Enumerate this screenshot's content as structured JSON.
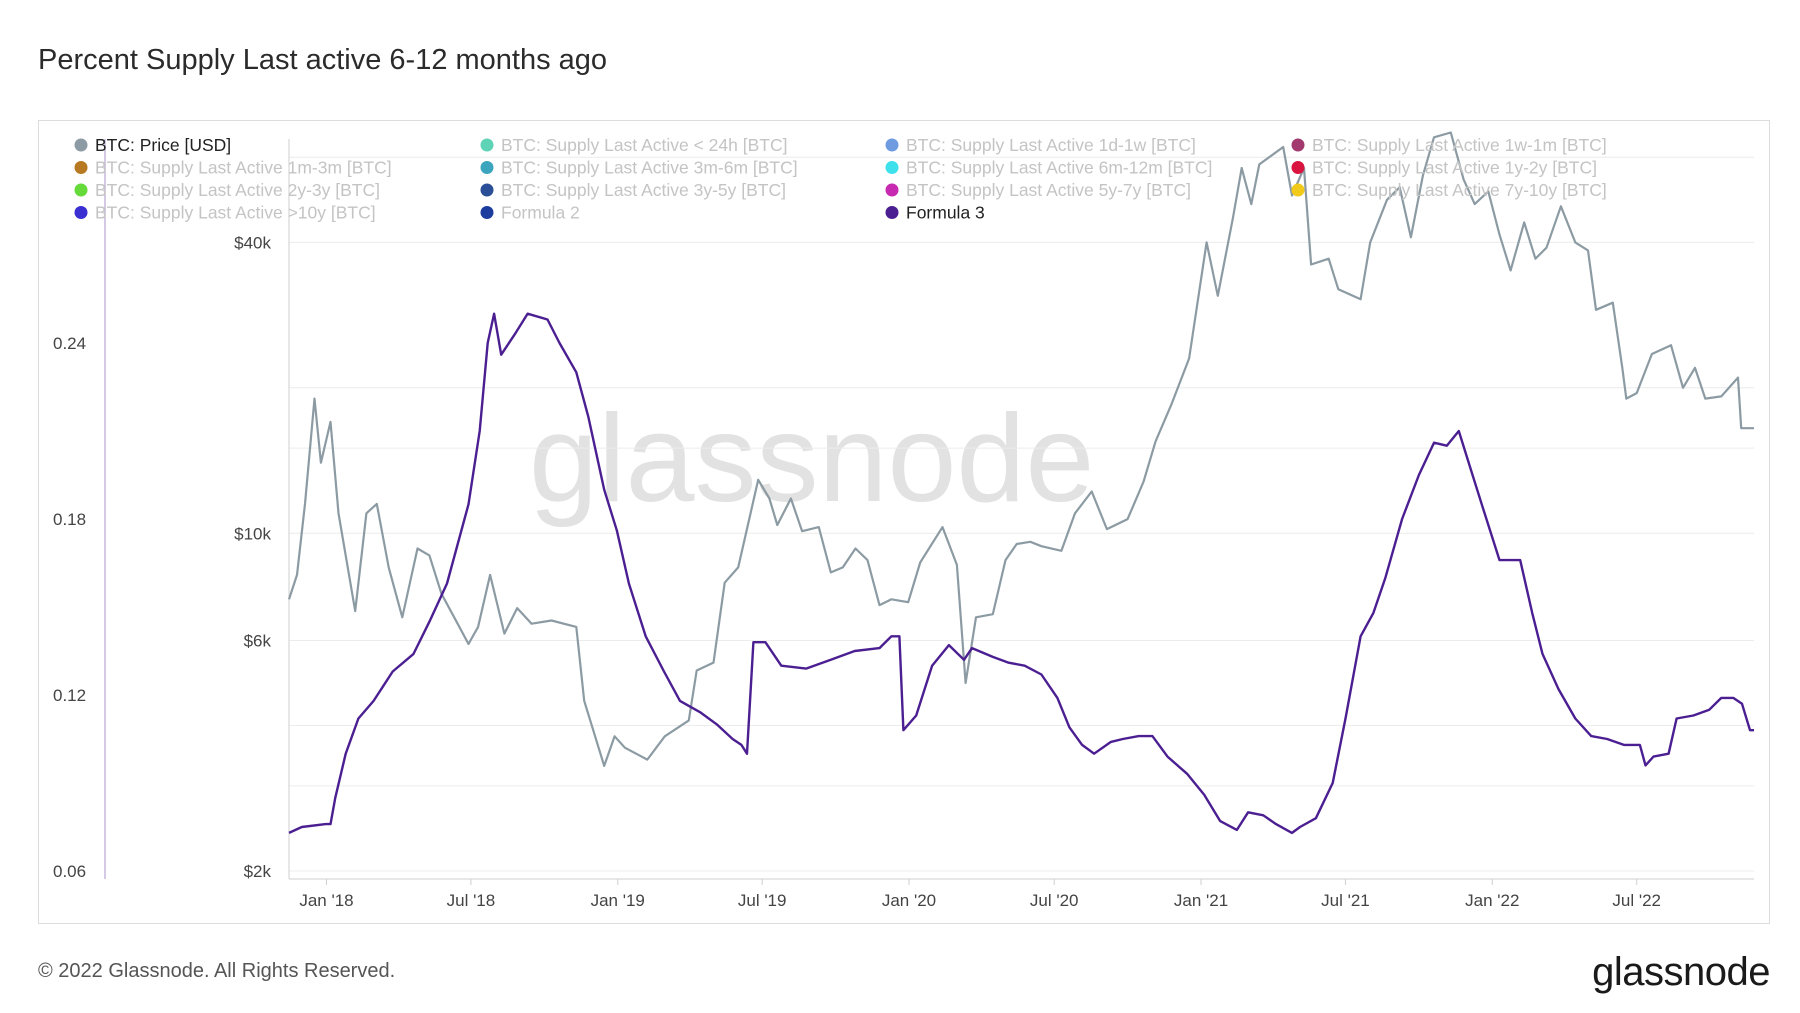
{
  "title": "Percent Supply Last active 6-12 months ago",
  "footer": {
    "copyright": "© 2022 Glassnode. All Rights Reserved.",
    "logo_text": "glassnode"
  },
  "watermark": "glassnode",
  "colors": {
    "price": "#8c9ba3",
    "formula3": "#4b1f91",
    "grid": "#ececec",
    "axis": "#cfcfcf"
  },
  "legend": [
    {
      "label": "BTC: Price [USD]",
      "color": "#8c9ba3",
      "active": true
    },
    {
      "label": "BTC: Supply Last Active < 24h [BTC]",
      "color": "#5fd3b5",
      "active": false
    },
    {
      "label": "BTC: Supply Last Active 1d-1w [BTC]",
      "color": "#6f9be0",
      "active": false
    },
    {
      "label": "BTC: Supply Last Active 1w-1m [BTC]",
      "color": "#a23a6f",
      "active": false
    },
    {
      "label": "BTC: Supply Last Active 1m-3m [BTC]",
      "color": "#b77a22",
      "active": false
    },
    {
      "label": "BTC: Supply Last Active 3m-6m [BTC]",
      "color": "#3aa5bd",
      "active": false
    },
    {
      "label": "BTC: Supply Last Active 6m-12m [BTC]",
      "color": "#3ee0ec",
      "active": false
    },
    {
      "label": "BTC: Supply Last Active 1y-2y [BTC]",
      "color": "#d9153f",
      "active": false
    },
    {
      "label": "BTC: Supply Last Active 2y-3y [BTC]",
      "color": "#66d93b",
      "active": false
    },
    {
      "label": "BTC: Supply Last Active 3y-5y [BTC]",
      "color": "#2a4f96",
      "active": false
    },
    {
      "label": "BTC: Supply Last Active 5y-7y [BTC]",
      "color": "#c72ab0",
      "active": false
    },
    {
      "label": "BTC: Supply Last Active 7y-10y [BTC]",
      "color": "#f2cb1a",
      "active": false
    },
    {
      "label": "BTC: Supply Last Active >10y [BTC]",
      "color": "#3a2fd1",
      "active": false
    },
    {
      "label": "Formula 2",
      "color": "#1c3d9e",
      "active": false
    },
    {
      "label": "Formula 3",
      "color": "#4b1f91",
      "active": true
    }
  ],
  "chart_data": {
    "type": "line",
    "title": "Percent Supply Last active 6-12 months ago",
    "x_tick_labels": [
      "Jan '18",
      "Jul '18",
      "Jan '19",
      "Jul '19",
      "Jan '20",
      "Jul '20",
      "Jan '21",
      "Jul '21",
      "Jan '22",
      "Jul '22"
    ],
    "x_range": [
      "2017-11-15",
      "2022-11-25"
    ],
    "left_axis": {
      "ticks": [
        0.06,
        0.12,
        0.18,
        0.24
      ],
      "tick_labels": [
        "0.06",
        "0.12",
        "0.18",
        "0.24"
      ],
      "range": [
        0.06,
        0.24
      ]
    },
    "right_axis": {
      "scale": "log",
      "ticks": [
        2000,
        6000,
        10000,
        40000
      ],
      "tick_labels": [
        "$2k",
        "$6k",
        "$10k",
        "$40k"
      ],
      "range": [
        2000,
        68000
      ]
    },
    "grid": true,
    "legend_position": "top-left",
    "series": [
      {
        "name": "BTC: Price [USD]",
        "axis": "right",
        "points": [
          [
            "2017-11-15",
            7300
          ],
          [
            "2017-11-25",
            8200
          ],
          [
            "2017-12-05",
            11500
          ],
          [
            "2017-12-17",
            19000
          ],
          [
            "2017-12-25",
            14000
          ],
          [
            "2018-01-06",
            17000
          ],
          [
            "2018-01-16",
            11000
          ],
          [
            "2018-02-06",
            6900
          ],
          [
            "2018-02-20",
            11000
          ],
          [
            "2018-03-05",
            11500
          ],
          [
            "2018-03-20",
            8500
          ],
          [
            "2018-04-06",
            6700
          ],
          [
            "2018-04-25",
            9300
          ],
          [
            "2018-05-10",
            9000
          ],
          [
            "2018-05-25",
            7500
          ],
          [
            "2018-06-10",
            6700
          ],
          [
            "2018-06-28",
            5900
          ],
          [
            "2018-07-10",
            6400
          ],
          [
            "2018-07-25",
            8200
          ],
          [
            "2018-08-12",
            6200
          ],
          [
            "2018-08-28",
            7000
          ],
          [
            "2018-09-15",
            6500
          ],
          [
            "2018-10-10",
            6600
          ],
          [
            "2018-11-10",
            6400
          ],
          [
            "2018-11-20",
            4500
          ],
          [
            "2018-12-15",
            3300
          ],
          [
            "2018-12-28",
            3800
          ],
          [
            "2019-01-10",
            3600
          ],
          [
            "2019-02-07",
            3400
          ],
          [
            "2019-03-01",
            3800
          ],
          [
            "2019-03-31",
            4100
          ],
          [
            "2019-04-10",
            5200
          ],
          [
            "2019-05-01",
            5400
          ],
          [
            "2019-05-15",
            7900
          ],
          [
            "2019-06-01",
            8500
          ],
          [
            "2019-06-26",
            12900
          ],
          [
            "2019-07-10",
            11800
          ],
          [
            "2019-07-20",
            10400
          ],
          [
            "2019-08-06",
            11800
          ],
          [
            "2019-08-20",
            10100
          ],
          [
            "2019-09-10",
            10300
          ],
          [
            "2019-09-25",
            8300
          ],
          [
            "2019-10-10",
            8500
          ],
          [
            "2019-10-26",
            9300
          ],
          [
            "2019-11-10",
            8800
          ],
          [
            "2019-11-25",
            7100
          ],
          [
            "2019-12-10",
            7300
          ],
          [
            "2019-12-31",
            7200
          ],
          [
            "2020-01-15",
            8700
          ],
          [
            "2020-02-12",
            10300
          ],
          [
            "2020-03-01",
            8600
          ],
          [
            "2020-03-12",
            4900
          ],
          [
            "2020-03-25",
            6700
          ],
          [
            "2020-04-15",
            6800
          ],
          [
            "2020-05-01",
            8800
          ],
          [
            "2020-05-15",
            9500
          ],
          [
            "2020-06-01",
            9600
          ],
          [
            "2020-06-15",
            9400
          ],
          [
            "2020-07-10",
            9200
          ],
          [
            "2020-07-27",
            11000
          ],
          [
            "2020-08-17",
            12200
          ],
          [
            "2020-09-05",
            10200
          ],
          [
            "2020-10-01",
            10700
          ],
          [
            "2020-10-21",
            12800
          ],
          [
            "2020-11-05",
            15500
          ],
          [
            "2020-11-25",
            18500
          ],
          [
            "2020-12-17",
            23000
          ],
          [
            "2021-01-08",
            40000
          ],
          [
            "2021-01-22",
            31000
          ],
          [
            "2021-02-10",
            45000
          ],
          [
            "2021-02-21",
            57000
          ],
          [
            "2021-03-05",
            48000
          ],
          [
            "2021-03-15",
            58000
          ],
          [
            "2021-04-14",
            63000
          ],
          [
            "2021-04-25",
            50000
          ],
          [
            "2021-05-10",
            57000
          ],
          [
            "2021-05-19",
            36000
          ],
          [
            "2021-06-10",
            37000
          ],
          [
            "2021-06-22",
            32000
          ],
          [
            "2021-07-20",
            30500
          ],
          [
            "2021-08-01",
            40000
          ],
          [
            "2021-08-22",
            49000
          ],
          [
            "2021-09-07",
            52000
          ],
          [
            "2021-09-21",
            41000
          ],
          [
            "2021-10-06",
            55000
          ],
          [
            "2021-10-20",
            66000
          ],
          [
            "2021-11-10",
            67500
          ],
          [
            "2021-11-26",
            54000
          ],
          [
            "2021-12-10",
            48000
          ],
          [
            "2021-12-27",
            51000
          ],
          [
            "2022-01-10",
            41500
          ],
          [
            "2022-01-24",
            35000
          ],
          [
            "2022-02-10",
            44000
          ],
          [
            "2022-02-24",
            37000
          ],
          [
            "2022-03-10",
            39000
          ],
          [
            "2022-03-28",
            47500
          ],
          [
            "2022-04-15",
            40000
          ],
          [
            "2022-05-01",
            38500
          ],
          [
            "2022-05-11",
            29000
          ],
          [
            "2022-06-01",
            30000
          ],
          [
            "2022-06-13",
            22000
          ],
          [
            "2022-06-18",
            19000
          ],
          [
            "2022-07-01",
            19500
          ],
          [
            "2022-07-20",
            23500
          ],
          [
            "2022-08-13",
            24500
          ],
          [
            "2022-08-28",
            20000
          ],
          [
            "2022-09-12",
            22000
          ],
          [
            "2022-09-25",
            19000
          ],
          [
            "2022-10-15",
            19200
          ],
          [
            "2022-11-05",
            21000
          ],
          [
            "2022-11-09",
            16500
          ],
          [
            "2022-11-25",
            16500
          ]
        ]
      },
      {
        "name": "Formula 3",
        "axis": "left",
        "points": [
          [
            "2017-11-15",
            0.073
          ],
          [
            "2017-12-01",
            0.075
          ],
          [
            "2017-12-31",
            0.076
          ],
          [
            "2018-01-06",
            0.076
          ],
          [
            "2018-01-12",
            0.085
          ],
          [
            "2018-01-25",
            0.1
          ],
          [
            "2018-02-10",
            0.112
          ],
          [
            "2018-03-01",
            0.118
          ],
          [
            "2018-03-25",
            0.128
          ],
          [
            "2018-04-20",
            0.134
          ],
          [
            "2018-05-10",
            0.145
          ],
          [
            "2018-06-01",
            0.158
          ],
          [
            "2018-06-28",
            0.185
          ],
          [
            "2018-07-12",
            0.21
          ],
          [
            "2018-07-22",
            0.24
          ],
          [
            "2018-07-30",
            0.25
          ],
          [
            "2018-08-08",
            0.236
          ],
          [
            "2018-08-25",
            0.243
          ],
          [
            "2018-09-10",
            0.25
          ],
          [
            "2018-10-05",
            0.248
          ],
          [
            "2018-10-20",
            0.24
          ],
          [
            "2018-11-10",
            0.23
          ],
          [
            "2018-11-25",
            0.215
          ],
          [
            "2018-12-15",
            0.19
          ],
          [
            "2018-12-31",
            0.176
          ],
          [
            "2019-01-15",
            0.158
          ],
          [
            "2019-02-05",
            0.14
          ],
          [
            "2019-02-28",
            0.128
          ],
          [
            "2019-03-20",
            0.118
          ],
          [
            "2019-04-15",
            0.114
          ],
          [
            "2019-05-05",
            0.11
          ],
          [
            "2019-05-25",
            0.105
          ],
          [
            "2019-06-05",
            0.103
          ],
          [
            "2019-06-12",
            0.1
          ],
          [
            "2019-06-20",
            0.138
          ],
          [
            "2019-07-05",
            0.138
          ],
          [
            "2019-07-25",
            0.13
          ],
          [
            "2019-08-25",
            0.129
          ],
          [
            "2019-09-25",
            0.132
          ],
          [
            "2019-10-25",
            0.135
          ],
          [
            "2019-11-25",
            0.136
          ],
          [
            "2019-12-10",
            0.14
          ],
          [
            "2019-12-20",
            0.14
          ],
          [
            "2019-12-25",
            0.108
          ],
          [
            "2020-01-10",
            0.113
          ],
          [
            "2020-01-30",
            0.13
          ],
          [
            "2020-02-20",
            0.137
          ],
          [
            "2020-03-10",
            0.132
          ],
          [
            "2020-03-20",
            0.136
          ],
          [
            "2020-04-15",
            0.133
          ],
          [
            "2020-05-05",
            0.131
          ],
          [
            "2020-05-25",
            0.13
          ],
          [
            "2020-06-15",
            0.127
          ],
          [
            "2020-07-05",
            0.119
          ],
          [
            "2020-07-20",
            0.109
          ],
          [
            "2020-08-05",
            0.103
          ],
          [
            "2020-08-20",
            0.1
          ],
          [
            "2020-09-10",
            0.104
          ],
          [
            "2020-09-25",
            0.105
          ],
          [
            "2020-10-15",
            0.106
          ],
          [
            "2020-11-01",
            0.106
          ],
          [
            "2020-11-20",
            0.099
          ],
          [
            "2020-12-15",
            0.093
          ],
          [
            "2021-01-05",
            0.086
          ],
          [
            "2021-01-25",
            0.077
          ],
          [
            "2021-02-15",
            0.074
          ],
          [
            "2021-03-01",
            0.08
          ],
          [
            "2021-03-20",
            0.079
          ],
          [
            "2021-04-05",
            0.076
          ],
          [
            "2021-04-25",
            0.073
          ],
          [
            "2021-05-05",
            0.075
          ],
          [
            "2021-05-25",
            0.078
          ],
          [
            "2021-06-15",
            0.09
          ],
          [
            "2021-07-01",
            0.112
          ],
          [
            "2021-07-20",
            0.14
          ],
          [
            "2021-08-05",
            0.148
          ],
          [
            "2021-08-20",
            0.16
          ],
          [
            "2021-09-10",
            0.18
          ],
          [
            "2021-10-01",
            0.195
          ],
          [
            "2021-10-20",
            0.206
          ],
          [
            "2021-11-05",
            0.205
          ],
          [
            "2021-11-20",
            0.21
          ],
          [
            "2021-12-05",
            0.197
          ],
          [
            "2021-12-20",
            0.184
          ],
          [
            "2022-01-10",
            0.166
          ],
          [
            "2022-01-25",
            0.166
          ],
          [
            "2022-02-05",
            0.166
          ],
          [
            "2022-02-20",
            0.148
          ],
          [
            "2022-03-05",
            0.134
          ],
          [
            "2022-03-25",
            0.122
          ],
          [
            "2022-04-15",
            0.112
          ],
          [
            "2022-05-05",
            0.106
          ],
          [
            "2022-05-25",
            0.105
          ],
          [
            "2022-06-15",
            0.103
          ],
          [
            "2022-07-05",
            0.103
          ],
          [
            "2022-07-12",
            0.096
          ],
          [
            "2022-07-22",
            0.099
          ],
          [
            "2022-08-10",
            0.1
          ],
          [
            "2022-08-20",
            0.112
          ],
          [
            "2022-09-10",
            0.113
          ],
          [
            "2022-09-30",
            0.115
          ],
          [
            "2022-10-15",
            0.119
          ],
          [
            "2022-10-30",
            0.119
          ],
          [
            "2022-11-10",
            0.117
          ],
          [
            "2022-11-20",
            0.108
          ],
          [
            "2022-11-25",
            0.108
          ]
        ]
      }
    ]
  }
}
